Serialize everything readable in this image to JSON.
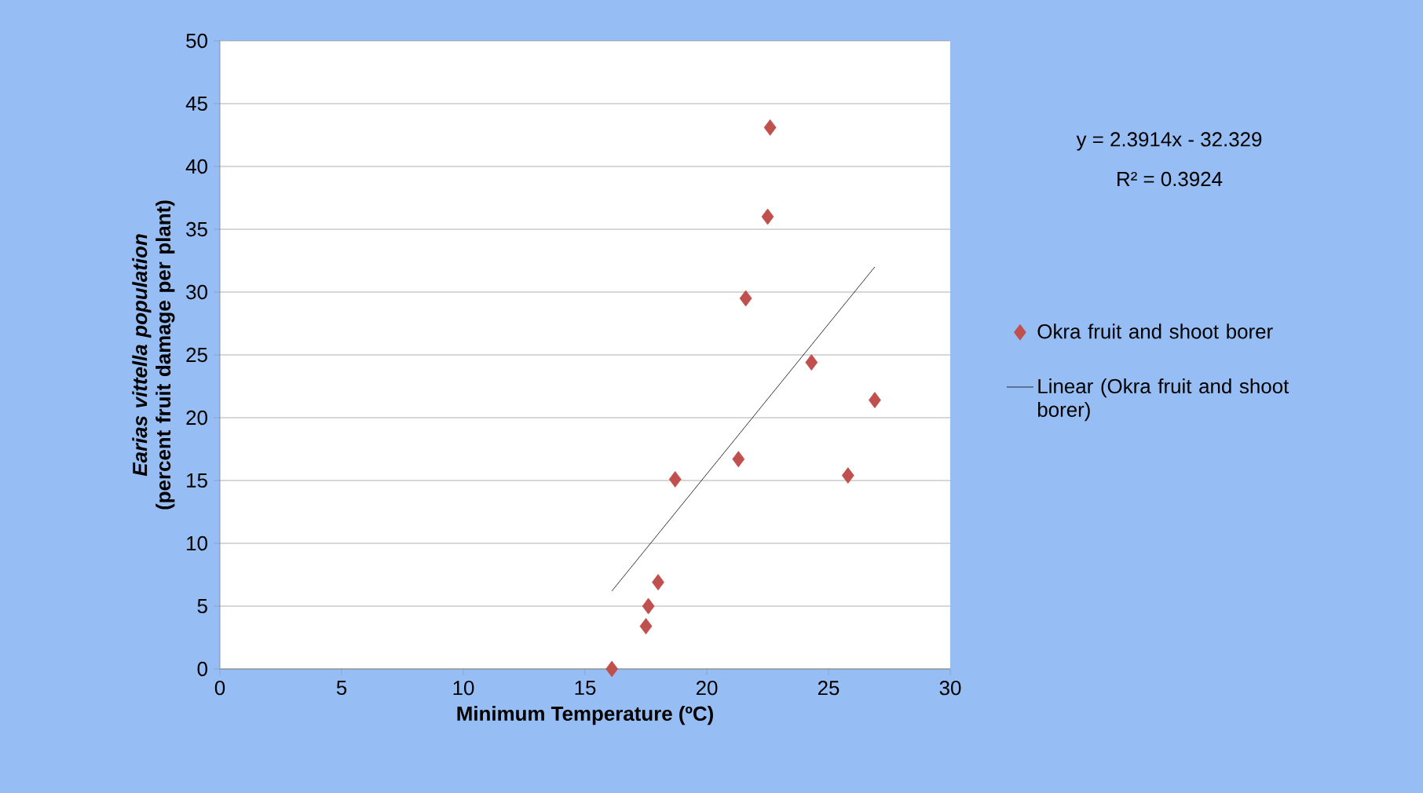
{
  "chart_data": {
    "type": "scatter",
    "xlabel": "Minimum Temperature (ºC)",
    "ylabel": "*Earias vittella population* (percent fruit damage per plant)",
    "xlim": [
      0,
      30
    ],
    "ylim": [
      0,
      50
    ],
    "xticks": [
      0,
      5,
      10,
      15,
      20,
      25,
      30
    ],
    "yticks": [
      0,
      5,
      10,
      15,
      20,
      25,
      30,
      35,
      40,
      45,
      50
    ],
    "grid": "y",
    "legend": "right",
    "marker": "diamond",
    "annotations": [
      "y = 2.3914x - 32.329",
      "R² = 0.3924"
    ],
    "series": [
      {
        "name": "Okra fruit and shoot borer",
        "color": "#c0504d",
        "x": [
          16.1,
          17.5,
          17.6,
          18.0,
          18.7,
          21.3,
          21.6,
          22.5,
          22.6,
          24.3,
          25.8,
          26.9
        ],
        "values": [
          0,
          3.4,
          5.0,
          6.9,
          15.1,
          16.7,
          29.5,
          36.0,
          43.1,
          24.4,
          15.4,
          21.4
        ]
      },
      {
        "name": "Linear (Okra fruit and shoot borer)",
        "type": "line",
        "marker": "none",
        "line_style": "solid",
        "color": "#000000",
        "x": [
          16.1,
          26.9
        ],
        "values": [
          6.2,
          32.0
        ]
      }
    ]
  }
}
